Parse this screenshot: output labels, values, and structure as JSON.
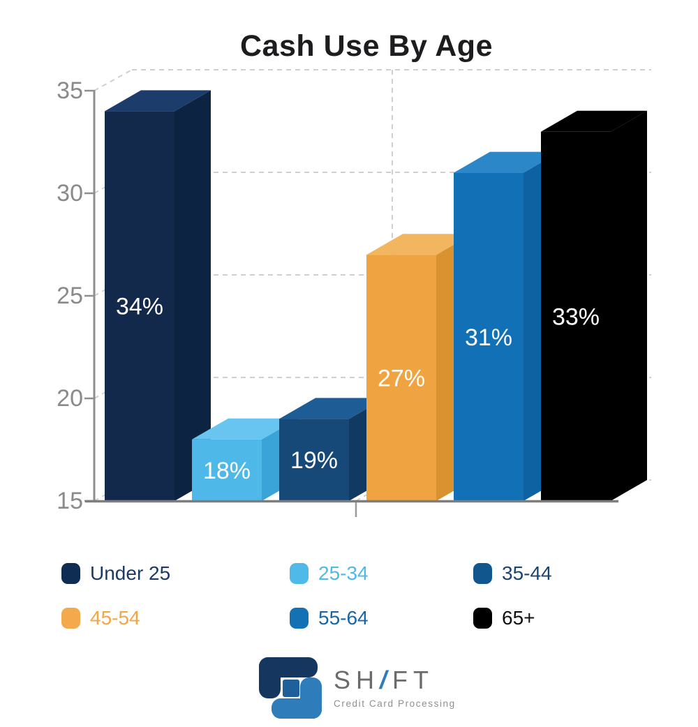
{
  "chart_data": {
    "type": "bar",
    "style": "3d-bars",
    "title": "Cash Use By Age",
    "categories": [
      "Under 25",
      "25-34",
      "35-44",
      "45-54",
      "55-64",
      "65+"
    ],
    "values": [
      34,
      18,
      19,
      27,
      31,
      33
    ],
    "value_labels": [
      "34%",
      "18%",
      "19%",
      "27%",
      "31%",
      "33%"
    ],
    "ylim": [
      15,
      35
    ],
    "yticks": [
      35,
      30,
      25,
      20,
      15
    ],
    "grid": "dashed gray back-wall gridlines, one vertical back gridline",
    "legend_position": "bottom",
    "bar_colors": [
      {
        "front": "#12294B",
        "top": "#1C3C6B",
        "side": "#0D2342"
      },
      {
        "front": "#4EB8E9",
        "top": "#68C5EF",
        "side": "#3AA3D8"
      },
      {
        "front": "#164878",
        "top": "#1E5C96",
        "side": "#113A62"
      },
      {
        "front": "#F0A441",
        "top": "#F3B660",
        "side": "#D8922F"
      },
      {
        "front": "#1271B6",
        "top": "#2C87C9",
        "side": "#0F62A2"
      },
      {
        "front": "#000000",
        "top": "#000000",
        "side": "#000000"
      }
    ],
    "bar_label_color": "#ffffff",
    "axis_tick_color": "#8a8a8a",
    "axis_line_color": "#8e8e8e",
    "gridline_color": "#cfcfcf"
  },
  "legend": {
    "items": [
      {
        "label": "Under 25",
        "swatch": "#0F2D52",
        "text_color": "#1C3A63"
      },
      {
        "label": "25-34",
        "swatch": "#4FB9EA",
        "text_color": "#4FB9EA"
      },
      {
        "label": "35-44",
        "swatch": "#11568D",
        "text_color": "#1B4470"
      },
      {
        "label": "45-54",
        "swatch": "#F3A94C",
        "text_color": "#F2A644"
      },
      {
        "label": "55-64",
        "swatch": "#1472B4",
        "text_color": "#1766A8"
      },
      {
        "label": "65+",
        "swatch": "#000000",
        "text_color": "#111111"
      }
    ]
  },
  "logo": {
    "brand_part1": "SH",
    "brand_slash": "/",
    "brand_part2": "FT",
    "tagline": "Credit Card Processing",
    "slash_color": "#2E7CB9",
    "icon_colors": {
      "dark": "#14365F",
      "light": "#2E7CB9",
      "square": "#1F609A"
    }
  }
}
